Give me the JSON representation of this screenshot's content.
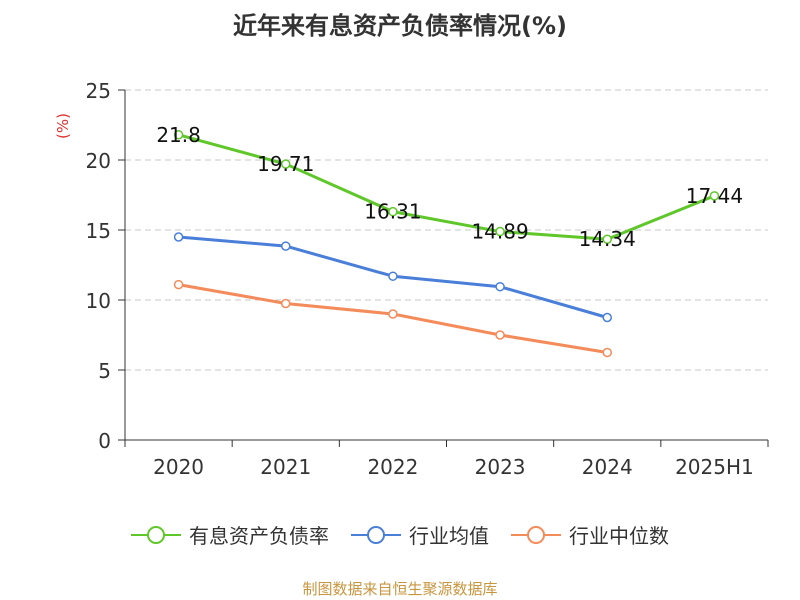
{
  "page": {
    "title": "近年来有息资产负债率情况(%)",
    "source": "制图数据来自恒生聚源数据库"
  },
  "chart_data": {
    "type": "line",
    "title": "近年来有息资产负债率情况(%)",
    "ylabel": "(%)",
    "xlabel": "",
    "categories": [
      "2020",
      "2021",
      "2022",
      "2023",
      "2024",
      "2025H1"
    ],
    "ylim": [
      0,
      25
    ],
    "yticks": [
      0,
      5,
      10,
      15,
      20,
      25
    ],
    "grid": true,
    "legend_position": "bottom",
    "series": [
      {
        "name": "有息资产负债率",
        "color": "#5fc72a",
        "values": [
          21.8,
          19.71,
          16.31,
          14.89,
          14.34,
          17.44
        ],
        "labels": [
          "21.8",
          "19.71",
          "16.31",
          "14.89",
          "14.34",
          "17.44"
        ]
      },
      {
        "name": "行业均值",
        "color": "#4a7fd9",
        "values": [
          14.5,
          13.85,
          11.7,
          10.95,
          8.75,
          null
        ]
      },
      {
        "name": "行业中位数",
        "color": "#f48b5a",
        "values": [
          11.1,
          9.75,
          9.0,
          7.5,
          6.25,
          null
        ]
      }
    ]
  }
}
